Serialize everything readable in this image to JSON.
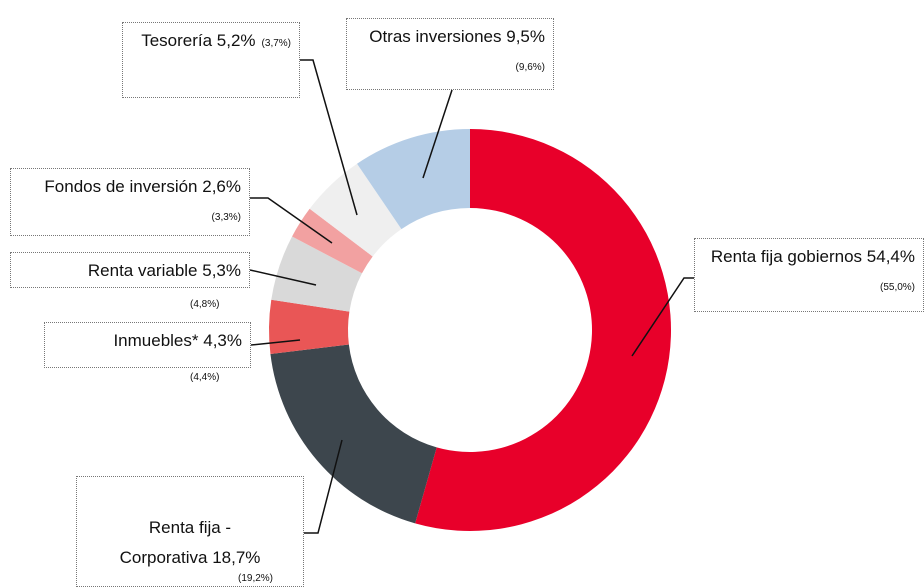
{
  "chart_data": {
    "type": "donut",
    "categories": [
      "Renta fija gobiernos",
      "Renta fija - Corporativa",
      "Inmuebles*",
      "Renta variable",
      "Fondos de inversión",
      "Tesorería",
      "Otras inversiones"
    ],
    "values": [
      54.4,
      18.7,
      4.3,
      5.3,
      2.6,
      5.2,
      9.5
    ],
    "value_labels": [
      "54,4%",
      "18,7%",
      "4,3%",
      "5,3%",
      "2,6%",
      "5,2%",
      "9,5%"
    ],
    "previous_labels": [
      "(55,0%)",
      "(19,2%)",
      "(4,4%)",
      "(4,8%)",
      "(3,3%)",
      "(3,7%)",
      "(9,6%)"
    ],
    "colors": [
      "#e8002a",
      "#3d464d",
      "#e95656",
      "#d9d9d9",
      "#f2a1a1",
      "#efefef",
      "#b5cde6"
    ]
  }
}
